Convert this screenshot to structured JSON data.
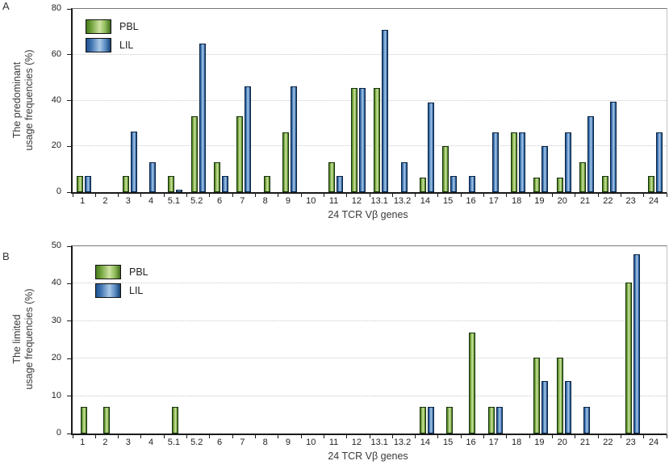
{
  "figure": {
    "background": "#ffffff",
    "legend": {
      "pbl_label": "PBL",
      "lil_label": "LIL"
    }
  },
  "colors": {
    "pbl_green_dark": "#47781f",
    "pbl_green_light": "#cfe3a2",
    "lil_blue_dark": "#1e4f8c",
    "lil_blue_light": "#aac9e8",
    "axis": "#1a1a1a",
    "gridline": "#c9c9c9"
  },
  "chart_data": [
    {
      "type": "bar",
      "panel": "A",
      "ylabel": "The predominant usage frequencies (%)",
      "ylabel_lines": [
        "The predominant",
        "usage frequencies (%)"
      ],
      "xlabel": "24 TCR Vβ  genes",
      "ylim": [
        0,
        80
      ],
      "yticks": [
        0,
        20,
        40,
        60,
        80
      ],
      "grid": true,
      "legend_position": "top-left",
      "categories": [
        "1",
        "2",
        "3",
        "4",
        "5.1",
        "5.2",
        "6",
        "7",
        "8",
        "9",
        "10",
        "11",
        "12",
        "13.1",
        "13.2",
        "14",
        "15",
        "16",
        "17",
        "18",
        "19",
        "20",
        "21",
        "22",
        "23",
        "24"
      ],
      "series": [
        {
          "name": "PBL",
          "values": [
            7,
            0,
            7,
            0,
            7,
            33,
            13,
            33,
            7,
            26,
            0,
            13,
            45.5,
            45.5,
            0,
            6.5,
            20,
            0,
            0,
            26,
            6.5,
            6.5,
            13,
            7,
            0,
            7
          ]
        },
        {
          "name": "LIL",
          "values": [
            7,
            0,
            26.5,
            13,
            1,
            65,
            7,
            46,
            0,
            46,
            0,
            7,
            45.5,
            71,
            13,
            39,
            7,
            7,
            26,
            26,
            20,
            26,
            33,
            39.5,
            0,
            26
          ]
        }
      ]
    },
    {
      "type": "bar",
      "panel": "B",
      "ylabel": "The limited usage frequencies (%)",
      "ylabel_lines": [
        "The limited",
        "usage frequencies (%)"
      ],
      "xlabel": "24 TCR Vβ  genes",
      "ylim": [
        0,
        50
      ],
      "yticks": [
        0,
        10,
        20,
        30,
        40,
        50
      ],
      "grid": true,
      "legend_position": "top-left",
      "categories": [
        "1",
        "2",
        "3",
        "4",
        "5.1",
        "5.2",
        "6",
        "7",
        "8",
        "9",
        "10",
        "11",
        "12",
        "13.1",
        "13.2",
        "14",
        "15",
        "16",
        "17",
        "18",
        "19",
        "20",
        "21",
        "22",
        "23",
        "24"
      ],
      "series": [
        {
          "name": "PBL",
          "values": [
            7.2,
            7.2,
            0,
            0,
            7.2,
            0,
            0,
            0,
            0,
            0,
            0,
            0,
            0,
            0,
            0,
            7.2,
            7.2,
            27,
            7.2,
            0,
            20.3,
            20.2,
            0,
            0,
            40.3,
            0
          ]
        },
        {
          "name": "LIL",
          "values": [
            0,
            0,
            0,
            0,
            0,
            0,
            0,
            0,
            0,
            0,
            0,
            0,
            0,
            0,
            0,
            7.2,
            0,
            0,
            7.2,
            0,
            14,
            14,
            7.2,
            0,
            47.8,
            0
          ]
        }
      ]
    }
  ]
}
